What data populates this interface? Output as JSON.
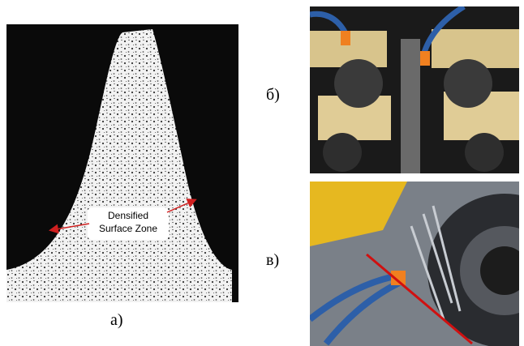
{
  "panel_labels": {
    "a": "а)",
    "b": "б)",
    "c": "в)"
  },
  "annotation": {
    "line1": "Densified",
    "line2": "Surface Zone"
  }
}
